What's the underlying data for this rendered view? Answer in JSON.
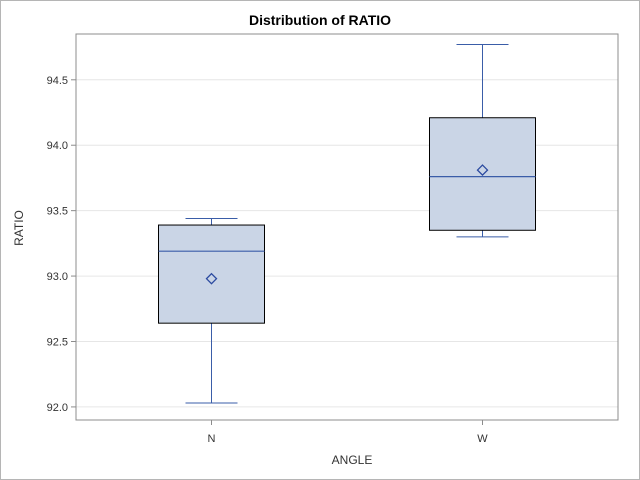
{
  "chart_data": {
    "type": "box",
    "title": "Distribution of RATIO",
    "xlabel": "ANGLE",
    "ylabel": "RATIO",
    "categories": [
      "N",
      "W"
    ],
    "yticks": [
      "92.0",
      "92.5",
      "93.0",
      "93.5",
      "94.0",
      "94.5"
    ],
    "ylim": [
      91.9,
      94.85
    ],
    "grid": true,
    "boxes": [
      {
        "category": "N",
        "min": 92.03,
        "q1": 92.64,
        "median": 93.19,
        "q3": 93.39,
        "max": 93.44,
        "mean": 92.98
      },
      {
        "category": "W",
        "min": 93.3,
        "q1": 93.35,
        "median": 93.76,
        "q3": 94.21,
        "max": 94.77,
        "mean": 93.81
      }
    ],
    "colors": {
      "box_fill": "#cad5e6",
      "box_outline": "#000000",
      "median": "#3a5da8",
      "whisker": "#3a5da8",
      "mean_marker": "#2b4aa0",
      "grid": "#e6e6e6",
      "frame": "#8c8c8c"
    }
  }
}
